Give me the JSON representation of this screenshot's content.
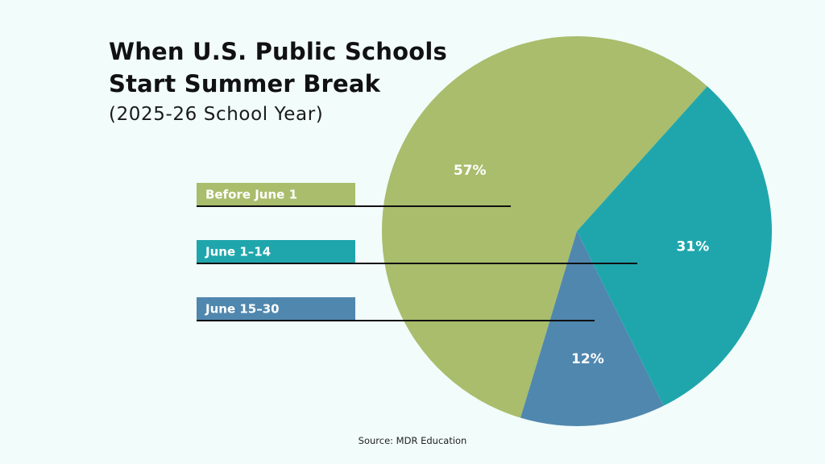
{
  "chart_data": {
    "type": "pie",
    "title_lines": [
      "When U.S. Public Schools",
      "Start Summer Break"
    ],
    "subtitle": "(2025-26 School Year)",
    "categories": [
      "Before June 1",
      "June 1–14",
      "June 15–30"
    ],
    "values": [
      57,
      31,
      12
    ],
    "value_labels": [
      "57%",
      "31%",
      "12%"
    ],
    "colors": [
      "#a9bd6c",
      "#1fa6ac",
      "#5087ae"
    ],
    "legend_placement": "left",
    "source": "Source: MDR Education"
  }
}
